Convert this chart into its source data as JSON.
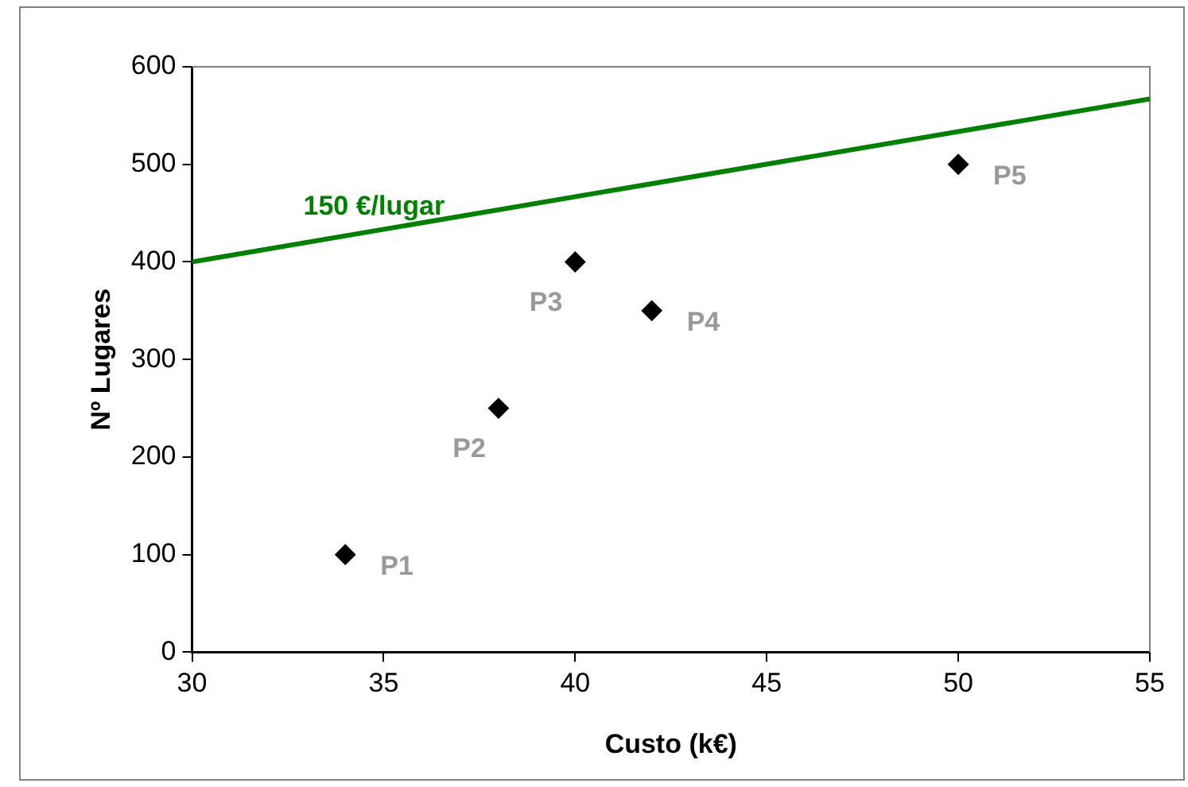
{
  "chart_data": {
    "type": "scatter",
    "xlabel": "Custo (k€)",
    "ylabel": "Nº Lugares",
    "xlim": [
      30,
      55
    ],
    "xticks": [
      30,
      35,
      40,
      45,
      50,
      55
    ],
    "ylim": [
      0,
      600
    ],
    "yticks": [
      0,
      100,
      200,
      300,
      400,
      500,
      600
    ],
    "grid": false,
    "legend": false,
    "series": [
      {
        "color": "#000000",
        "marker": "diamond",
        "x": [
          34,
          38,
          40,
          42,
          50
        ],
        "values": [
          100,
          250,
          400,
          350,
          500
        ]
      },
      {
        "type": "line",
        "name": "150 €/lugar",
        "color": "#008000",
        "marker": "none",
        "line_style": "solid",
        "x": [
          30,
          55
        ],
        "values": [
          400,
          567
        ]
      }
    ],
    "annotations": [
      {
        "text": "P1",
        "x": 34,
        "y": 100
      },
      {
        "text": "P2",
        "x": 38,
        "y": 250
      },
      {
        "text": "P3",
        "x": 40,
        "y": 400
      },
      {
        "text": "P4",
        "x": 42,
        "y": 350
      },
      {
        "text": "P5",
        "x": 50,
        "y": 500
      }
    ]
  }
}
